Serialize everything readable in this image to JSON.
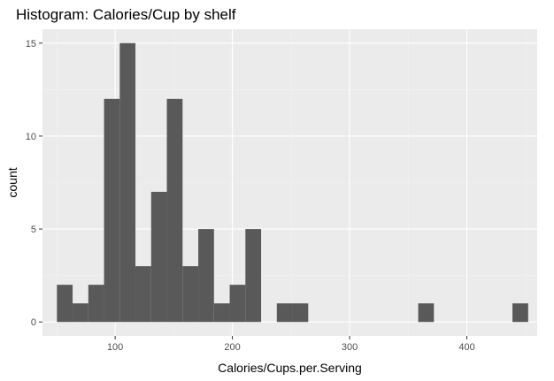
{
  "chart_data": {
    "type": "bar",
    "title": "Histogram: Calories/Cup by shelf",
    "xlabel": "Calories/Cups.per.Serving",
    "ylabel": "count",
    "xlim": [
      38,
      460
    ],
    "ylim": [
      -0.75,
      15.75
    ],
    "x_ticks": [
      100,
      200,
      300,
      400
    ],
    "x_tick_labels": [
      "100",
      "200",
      "300",
      "400"
    ],
    "y_ticks": [
      0,
      5,
      10,
      15
    ],
    "y_tick_labels": [
      "0",
      "5",
      "10",
      "15"
    ],
    "grid": true,
    "bin_width": 13.4,
    "bins": [
      {
        "x0": 50.3,
        "x1": 63.7,
        "count": 2
      },
      {
        "x0": 63.7,
        "x1": 77.1,
        "count": 1
      },
      {
        "x0": 77.1,
        "x1": 90.5,
        "count": 2
      },
      {
        "x0": 90.5,
        "x1": 103.9,
        "count": 12
      },
      {
        "x0": 103.9,
        "x1": 117.3,
        "count": 15
      },
      {
        "x0": 117.3,
        "x1": 130.7,
        "count": 3
      },
      {
        "x0": 130.7,
        "x1": 144.1,
        "count": 7
      },
      {
        "x0": 144.1,
        "x1": 157.5,
        "count": 12
      },
      {
        "x0": 157.5,
        "x1": 170.9,
        "count": 3
      },
      {
        "x0": 170.9,
        "x1": 184.3,
        "count": 5
      },
      {
        "x0": 184.3,
        "x1": 197.7,
        "count": 1
      },
      {
        "x0": 197.7,
        "x1": 211.1,
        "count": 2
      },
      {
        "x0": 211.1,
        "x1": 224.5,
        "count": 5
      },
      {
        "x0": 237.9,
        "x1": 251.3,
        "count": 1
      },
      {
        "x0": 251.3,
        "x1": 264.7,
        "count": 1
      },
      {
        "x0": 358.5,
        "x1": 371.9,
        "count": 1
      },
      {
        "x0": 438.9,
        "x1": 452.3,
        "count": 1
      }
    ],
    "colors": {
      "bar": "#595959",
      "panel": "#ebebeb"
    }
  }
}
